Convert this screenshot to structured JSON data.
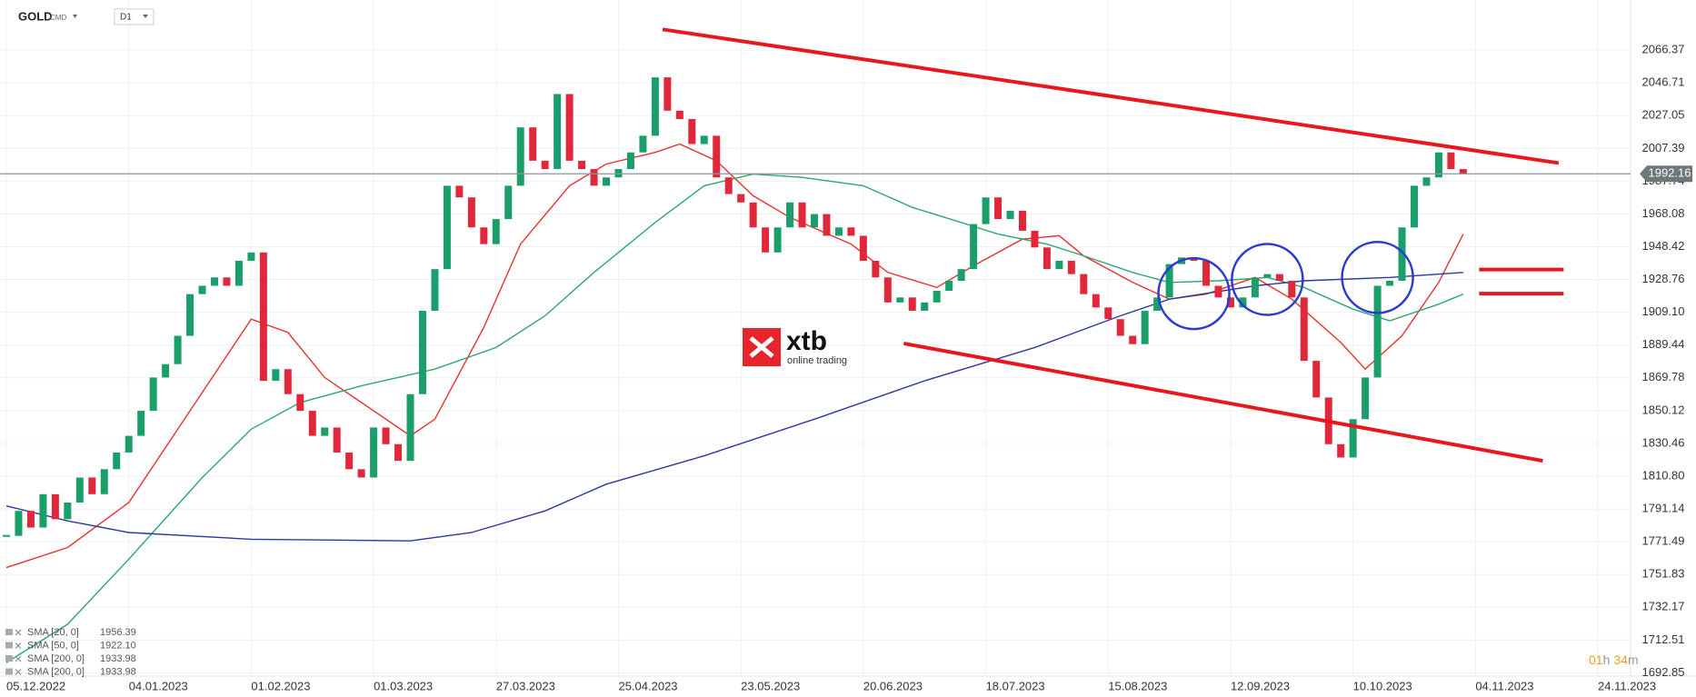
{
  "header": {
    "symbol": "GOLD",
    "market": "CMD",
    "interval": "D1"
  },
  "logo": {
    "name": "xtb",
    "tagline": "online trading"
  },
  "timer": {
    "hours": "01",
    "hours_unit": "h",
    "minutes": "34",
    "minutes_unit": "m"
  },
  "chart_data": {
    "type": "candlestick",
    "up_color": "#1a9e6a",
    "down_color": "#e0283a",
    "close": [
      1775,
      1790,
      1780,
      1800,
      1785,
      1795,
      1810,
      1800,
      1815,
      1825,
      1835,
      1850,
      1870,
      1878,
      1895,
      1920,
      1925,
      1930,
      1925,
      1940,
      1945,
      1868,
      1875,
      1860,
      1850,
      1835,
      1840,
      1825,
      1815,
      1810,
      1840,
      1830,
      1820,
      1860,
      1910,
      1935,
      1985,
      1978,
      1960,
      1950,
      1965,
      1985,
      2020,
      2000,
      1995,
      2040,
      2000,
      1995,
      1985,
      1990,
      1995,
      2005,
      2015,
      2050,
      2030,
      2025,
      2010,
      2015,
      1990,
      1980,
      1975,
      1960,
      1945,
      1960,
      1975,
      1960,
      1968,
      1955,
      1960,
      1955,
      1940,
      1930,
      1915,
      1918,
      1910,
      1915,
      1922,
      1928,
      1935,
      1962,
      1978,
      1965,
      1970,
      1958,
      1948,
      1935,
      1940,
      1932,
      1920,
      1912,
      1905,
      1895,
      1890,
      1910,
      1918,
      1938,
      1942,
      1940,
      1925,
      1918,
      1912,
      1918,
      1930,
      1932,
      1928,
      1918,
      1880,
      1858,
      1830,
      1822,
      1845,
      1870,
      1925,
      1928,
      1960,
      1985,
      1990,
      2005,
      1995,
      1992
    ],
    "xlim": [
      -0.52,
      132.67
    ],
    "xticks": [
      {
        "value": 0,
        "label": "05.12.2022"
      },
      {
        "value": 10,
        "label": "04.01.2023"
      },
      {
        "value": 20,
        "label": "01.02.2023"
      },
      {
        "value": 30,
        "label": "01.03.2023"
      },
      {
        "value": 40,
        "label": "27.03.2023"
      },
      {
        "value": 50,
        "label": "25.04.2023"
      },
      {
        "value": 60,
        "label": "23.05.2023"
      },
      {
        "value": 70,
        "label": "20.06.2023"
      },
      {
        "value": 80,
        "label": "18.07.2023"
      },
      {
        "value": 90,
        "label": "15.08.2023"
      },
      {
        "value": 100,
        "label": "12.09.2023"
      },
      {
        "value": 110,
        "label": "10.10.2023"
      },
      {
        "value": 120,
        "label": "04.11.2023"
      },
      {
        "value": 130,
        "label": "24.11.2023"
      }
    ],
    "ylim": [
      1690.9,
      2096.4
    ],
    "yticks": [
      2066.37,
      2046.71,
      2027.05,
      2007.39,
      1987.74,
      1968.08,
      1948.42,
      1928.76,
      {
        "value": 1909.1,
        "label": "1909.10"
      },
      1889.44,
      1869.78,
      1850.12,
      1830.46,
      {
        "value": 1810.8,
        "label": "1810.80"
      },
      1791.14,
      1771.49,
      1751.83,
      1732.17,
      1712.51,
      1692.85
    ],
    "grid": true,
    "last_price": 1992.16,
    "last_price_color": "#8a9499",
    "indicators": [
      {
        "name": "SMA [20, 0]",
        "value": 1956.39,
        "color": "#e83030",
        "x": [
          0,
          5,
          10,
          15,
          20,
          23,
          26,
          30,
          33,
          35,
          39,
          42,
          46,
          49,
          53,
          55,
          58,
          61,
          64,
          69,
          72,
          76,
          79,
          83,
          86,
          88,
          92,
          95,
          98,
          102,
          105,
          109,
          111,
          114,
          117,
          119
        ],
        "values": [
          1756,
          1768,
          1795,
          1850,
          1905,
          1897,
          1870,
          1850,
          1835,
          1845,
          1900,
          1950,
          1985,
          1998,
          2005,
          2010,
          2000,
          1979,
          1966,
          1950,
          1933,
          1924,
          1937,
          1953,
          1955,
          1943,
          1927,
          1917,
          1920,
          1930,
          1917,
          1891,
          1875,
          1895,
          1927,
          1956
        ]
      },
      {
        "name": "SMA [50, 0]",
        "value": 1922.1,
        "value_label": "1922.10",
        "color": "#2ca870",
        "x": [
          0,
          5,
          10,
          16,
          20,
          24,
          29,
          35,
          40,
          44,
          48,
          53,
          57,
          61,
          65,
          70,
          74,
          78,
          81,
          85,
          88,
          92,
          95,
          99,
          103,
          106,
          110,
          113,
          117,
          119
        ],
        "values": [
          1699,
          1722,
          1761,
          1810,
          1839,
          1855,
          1865,
          1875,
          1888,
          1907,
          1933,
          1963,
          1985,
          1992,
          1990,
          1985,
          1972,
          1963,
          1956,
          1950,
          1943,
          1933,
          1927,
          1928,
          1930,
          1924,
          1911,
          1904,
          1914,
          1920
        ]
      },
      {
        "name": "SMA [200, 0]",
        "value": 1933.98,
        "color": "#2c3a9a",
        "x": [
          0,
          5,
          10,
          20,
          33,
          38,
          44,
          49,
          57,
          66,
          75,
          84,
          91,
          95,
          102,
          106,
          113,
          119
        ],
        "values": [
          1793,
          1784,
          1777,
          1773,
          1772,
          1777,
          1790,
          1806,
          1823,
          1845,
          1868,
          1888,
          1907,
          1917,
          1925,
          1928,
          1930,
          1933
        ]
      },
      {
        "name": "SMA [200, 0]",
        "value": 1933.98,
        "color": "#2c3a9a"
      }
    ],
    "trendlines": [
      {
        "color": "#e8171d",
        "x": [
          53.6,
          126.8
        ],
        "y": [
          2078.8,
          1998.6
        ]
      },
      {
        "color": "#e8171d",
        "x": [
          73.3,
          125.5
        ],
        "y": [
          1890.4,
          1820
        ]
      },
      {
        "color": "#e8171d",
        "x": [
          120.3,
          127.2
        ],
        "y": [
          1934.7,
          1934.7
        ]
      },
      {
        "color": "#e8171d",
        "x": [
          120.3,
          127.2
        ],
        "y": [
          1920.3,
          1920.3
        ]
      }
    ],
    "circles": [
      {
        "color": "#2d3bd0",
        "x": 97,
        "y": 1920.3
      },
      {
        "color": "#2d3bd0",
        "x": 103,
        "y": 1928.8
      },
      {
        "color": "#2d3bd0",
        "x": 112,
        "y": 1930
      }
    ]
  }
}
